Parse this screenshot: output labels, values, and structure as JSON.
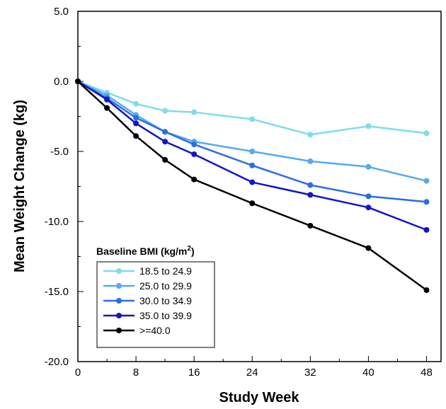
{
  "chart_data": {
    "type": "line",
    "xlabel": "Study Week",
    "ylabel": "Mean Weight Change (kg)",
    "xlim": [
      0,
      50
    ],
    "ylim": [
      -20,
      5
    ],
    "x_ticks": [
      0,
      8,
      16,
      24,
      32,
      40,
      48
    ],
    "x_tick_labels": [
      "0",
      "8",
      "16",
      "24",
      "32",
      "40",
      "48"
    ],
    "y_ticks": [
      5,
      0,
      -5,
      -10,
      -15,
      -20
    ],
    "y_tick_labels": [
      "5.0",
      "0.0",
      "-5.0",
      "-10.0",
      "-15.0",
      "-20.0"
    ],
    "grid": false,
    "legend": {
      "title_main": "Baseline BMI (kg/m",
      "title_sup": "2",
      "title_close": ")",
      "placement": "bottom-left"
    },
    "x": [
      0,
      4,
      8,
      12,
      16,
      24,
      32,
      40,
      48
    ],
    "series": [
      {
        "name": "18.5 to 24.9",
        "color": "#7fdde8",
        "values": [
          0,
          -0.8,
          -1.6,
          -2.1,
          -2.2,
          -2.7,
          -3.8,
          -3.2,
          -3.7
        ]
      },
      {
        "name": "25.0 to 29.9",
        "color": "#55aaf0",
        "values": [
          0,
          -1.0,
          -2.4,
          -3.6,
          -4.3,
          -5.0,
          -5.7,
          -6.1,
          -7.1
        ]
      },
      {
        "name": "30.0 to 34.9",
        "color": "#2a6ee6",
        "values": [
          0,
          -1.2,
          -2.6,
          -3.6,
          -4.5,
          -6.0,
          -7.4,
          -8.2,
          -8.6
        ]
      },
      {
        "name": "35.0 to 39.9",
        "color": "#1414c8",
        "values": [
          0,
          -1.3,
          -3.0,
          -4.3,
          -5.2,
          -7.2,
          -8.1,
          -9.0,
          -10.6
        ]
      },
      {
        "name": ">=40.0",
        "color": "#000000",
        "values": [
          0,
          -1.9,
          -3.9,
          -5.6,
          -7.0,
          -8.7,
          -10.3,
          -11.9,
          -14.9
        ]
      }
    ]
  }
}
